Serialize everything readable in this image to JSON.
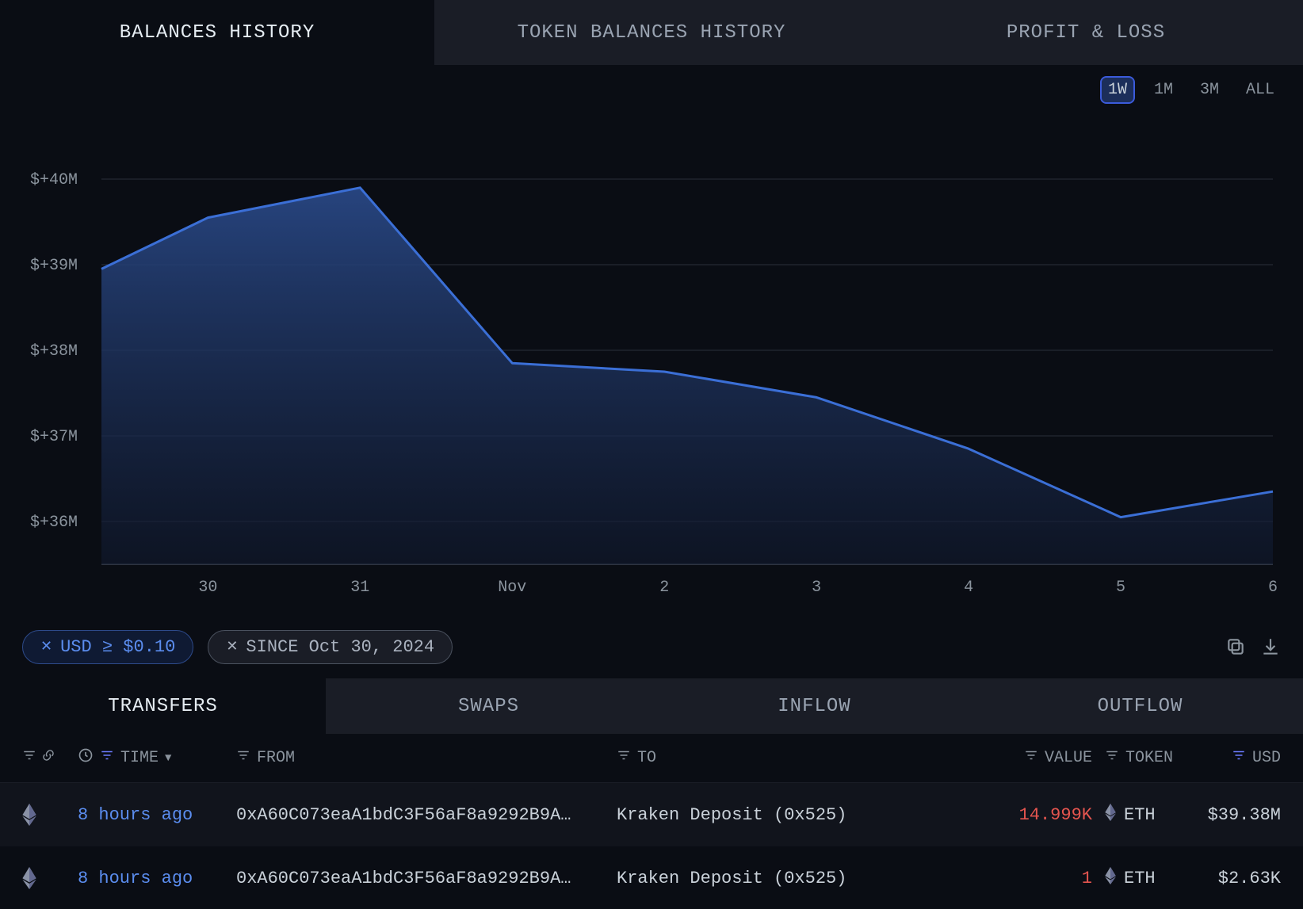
{
  "top_tabs": [
    {
      "label": "BALANCES HISTORY",
      "active": true
    },
    {
      "label": "TOKEN BALANCES HISTORY",
      "active": false
    },
    {
      "label": "PROFIT & LOSS",
      "active": false
    }
  ],
  "ranges": [
    {
      "label": "1W",
      "active": true
    },
    {
      "label": "1M",
      "active": false
    },
    {
      "label": "3M",
      "active": false
    },
    {
      "label": "ALL",
      "active": false
    }
  ],
  "chart": {
    "type": "area",
    "line_color": "#3b6fd6",
    "fill_top": "#2a4a8a",
    "fill_bottom": "#10192e",
    "grid_color": "#2a2f3a",
    "axis_color": "#3a4150",
    "ymin": 35.5,
    "ymax": 40.5,
    "yticks": [
      {
        "v": 40,
        "label": "$+40M"
      },
      {
        "v": 39,
        "label": "$+39M"
      },
      {
        "v": 38,
        "label": "$+38M"
      },
      {
        "v": 37,
        "label": "$+37M"
      },
      {
        "v": 36,
        "label": "$+36M"
      }
    ],
    "xmin": 29.3,
    "xmax": 37.0,
    "xticks": [
      {
        "v": 30,
        "label": "30"
      },
      {
        "v": 31,
        "label": "31"
      },
      {
        "v": 32,
        "label": "Nov"
      },
      {
        "v": 33,
        "label": "2"
      },
      {
        "v": 34,
        "label": "3"
      },
      {
        "v": 35,
        "label": "4"
      },
      {
        "v": 36,
        "label": "5"
      },
      {
        "v": 37,
        "label": "6"
      }
    ],
    "points": [
      {
        "x": 29.3,
        "y": 38.95
      },
      {
        "x": 30.0,
        "y": 39.55
      },
      {
        "x": 31.0,
        "y": 39.9
      },
      {
        "x": 32.0,
        "y": 37.85
      },
      {
        "x": 33.0,
        "y": 37.75
      },
      {
        "x": 34.0,
        "y": 37.45
      },
      {
        "x": 35.0,
        "y": 36.85
      },
      {
        "x": 36.0,
        "y": 36.05
      },
      {
        "x": 37.0,
        "y": 36.35
      }
    ]
  },
  "filters": [
    {
      "label": "USD ≥ $0.10",
      "style": "blue"
    },
    {
      "label": "SINCE Oct 30, 2024",
      "style": "gray"
    }
  ],
  "bottom_tabs": [
    {
      "label": "TRANSFERS",
      "active": true
    },
    {
      "label": "SWAPS",
      "active": false
    },
    {
      "label": "INFLOW",
      "active": false
    },
    {
      "label": "OUTFLOW",
      "active": false
    }
  ],
  "columns": {
    "time": "TIME",
    "from": "FROM",
    "to": "TO",
    "value": "VALUE",
    "token": "TOKEN",
    "usd": "USD"
  },
  "rows": [
    {
      "time": "8 hours ago",
      "from": "0xA60C073eaA1bdC3F56aF8a9292B9A…",
      "to": "Kraken Deposit (0x525)",
      "value": "14.999K",
      "token": "ETH",
      "usd": "$39.38M"
    },
    {
      "time": "8 hours ago",
      "from": "0xA60C073eaA1bdC3F56aF8a9292B9A…",
      "to": "Kraken Deposit (0x525)",
      "value": "1",
      "token": "ETH",
      "usd": "$2.63K"
    }
  ]
}
